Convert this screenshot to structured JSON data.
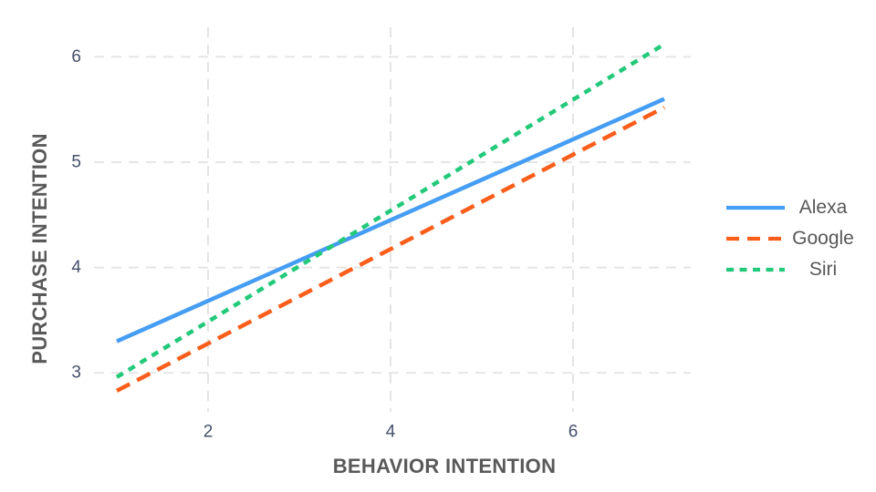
{
  "chart_data": {
    "type": "line",
    "title": "",
    "xlabel": "BEHAVIOR INTENTION",
    "ylabel": "PURCHASE INTENTION",
    "xlim": [
      0.75,
      7.29
    ],
    "ylim": [
      2.63,
      6.28
    ],
    "x_ticks": [
      2,
      4,
      6
    ],
    "y_ticks": [
      3,
      4,
      5,
      6
    ],
    "grid": "dashed",
    "legend_position": "right",
    "series": [
      {
        "name": "Alexa",
        "color": "#459df4",
        "line_style": "solid",
        "x": [
          1,
          7
        ],
        "y": [
          3.3,
          5.6
        ]
      },
      {
        "name": "Google",
        "color": "#fb5e1b",
        "line_style": "dashed",
        "x": [
          1,
          7
        ],
        "y": [
          2.83,
          5.52
        ]
      },
      {
        "name": "Siri",
        "color": "#23c97a",
        "line_style": "dotted",
        "x": [
          1,
          7
        ],
        "y": [
          2.96,
          6.12
        ]
      }
    ]
  },
  "colors": {
    "background": "#ffffff",
    "grid": "#e2e2e2",
    "tick_label": "#44506a",
    "axis_title": "#595959",
    "legend_text": "#575757"
  }
}
